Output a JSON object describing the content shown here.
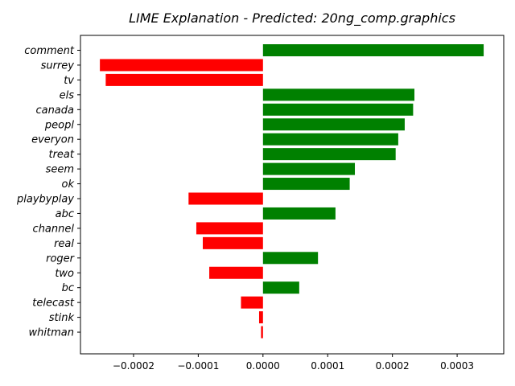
{
  "chart_data": {
    "type": "bar",
    "orientation": "horizontal",
    "title": "LIME Explanation - Predicted: 20ng_comp.graphics",
    "xlabel": "",
    "ylabel": "",
    "categories": [
      "comment",
      "surrey",
      "tv",
      "els",
      "canada",
      "peopl",
      "everyon",
      "treat",
      "seem",
      "ok",
      "playbyplay",
      "abc",
      "channel",
      "real",
      "roger",
      "two",
      "bc",
      "telecast",
      "stink",
      "whitman"
    ],
    "values": [
      0.000341,
      -0.000252,
      -0.000243,
      0.000234,
      0.000232,
      0.000219,
      0.000209,
      0.000205,
      0.000142,
      0.000134,
      -0.000115,
      0.000112,
      -0.000103,
      -9.3e-05,
      8.5e-05,
      -8.3e-05,
      5.6e-05,
      -3.4e-05,
      -6e-06,
      -3e-06
    ],
    "xlim": [
      -0.000282,
      0.000372
    ],
    "xticks": [
      -0.0002,
      -0.0001,
      0.0,
      0.0001,
      0.0002,
      0.0003
    ],
    "xtick_labels": [
      "−0.0002",
      "−0.0001",
      "0.0000",
      "0.0001",
      "0.0002",
      "0.0003"
    ],
    "positive_color": "#008000",
    "negative_color": "#ff0000",
    "grid": false
  }
}
